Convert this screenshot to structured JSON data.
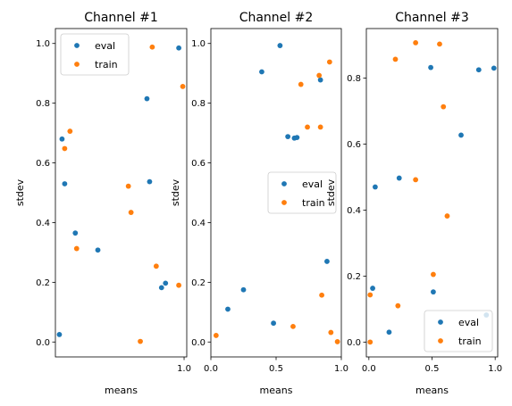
{
  "chart_data": [
    {
      "type": "scatter",
      "title": "Channel #1",
      "xlabel": "means",
      "ylabel": "stdev",
      "xlim": [
        0.03,
        1.02
      ],
      "ylim": [
        -0.05,
        1.05
      ],
      "xticks": [
        1.0
      ],
      "xtick_labels": [
        "1.0"
      ],
      "yticks": [
        0.0,
        0.2,
        0.4,
        0.6,
        0.8,
        1.0
      ],
      "ytick_labels": [
        "0.0",
        "0.2",
        "0.4",
        "0.6",
        "0.8",
        "1.0"
      ],
      "legend_position": "upper-left",
      "series": [
        {
          "name": "eval",
          "color": "#1f77b4",
          "x": [
            0.06,
            0.08,
            0.1,
            0.18,
            0.35,
            0.72,
            0.74,
            0.83,
            0.86,
            0.96
          ],
          "y": [
            0.025,
            0.68,
            0.53,
            0.365,
            0.308,
            0.815,
            0.537,
            0.182,
            0.197,
            0.985
          ]
        },
        {
          "name": "train",
          "color": "#ff7f0e",
          "x": [
            0.1,
            0.14,
            0.19,
            0.58,
            0.6,
            0.67,
            0.76,
            0.79,
            0.96,
            0.99
          ],
          "y": [
            0.648,
            0.706,
            0.313,
            0.522,
            0.434,
            0.002,
            0.988,
            0.254,
            0.19,
            0.856
          ]
        }
      ]
    },
    {
      "type": "scatter",
      "title": "Channel #2",
      "xlabel": "means",
      "ylabel": "stdev",
      "xlim": [
        0.0,
        1.0
      ],
      "ylim": [
        -0.05,
        1.05
      ],
      "xticks": [
        0.0,
        0.5,
        1.0
      ],
      "xtick_labels": [
        "0.0",
        "0.5",
        "1.0"
      ],
      "yticks": [
        0.0,
        0.2,
        0.4,
        0.6,
        0.8,
        1.0
      ],
      "ytick_labels": [
        "0.0",
        "0.2",
        "0.4",
        "0.6",
        "0.8",
        "1.0"
      ],
      "legend_position": "center-right",
      "series": [
        {
          "name": "eval",
          "color": "#1f77b4",
          "x": [
            0.13,
            0.25,
            0.39,
            0.48,
            0.53,
            0.59,
            0.64,
            0.66,
            0.84,
            0.89
          ],
          "y": [
            0.11,
            0.175,
            0.905,
            0.063,
            0.993,
            0.688,
            0.683,
            0.685,
            0.878,
            0.27
          ]
        },
        {
          "name": "train",
          "color": "#ff7f0e",
          "x": [
            0.04,
            0.63,
            0.69,
            0.74,
            0.83,
            0.84,
            0.85,
            0.91,
            0.92,
            0.97
          ],
          "y": [
            0.022,
            0.052,
            0.863,
            0.72,
            0.893,
            0.72,
            0.157,
            0.938,
            0.032,
            0.001
          ]
        }
      ]
    },
    {
      "type": "scatter",
      "title": "Channel #3",
      "xlabel": "means",
      "ylabel": "stdev",
      "xlim": [
        -0.02,
        1.02
      ],
      "ylim": [
        -0.045,
        0.95
      ],
      "xticks": [
        0.0,
        0.5,
        1.0
      ],
      "xtick_labels": [
        "0.0",
        "0.5",
        "1.0"
      ],
      "yticks": [
        0.0,
        0.2,
        0.4,
        0.6,
        0.8
      ],
      "ytick_labels": [
        "0.0",
        "0.2",
        "0.4",
        "0.6",
        "0.8"
      ],
      "legend_position": "lower-right",
      "series": [
        {
          "name": "eval",
          "color": "#1f77b4",
          "x": [
            0.03,
            0.05,
            0.16,
            0.24,
            0.49,
            0.51,
            0.73,
            0.87,
            0.93,
            0.99
          ],
          "y": [
            0.163,
            0.47,
            0.03,
            0.497,
            0.832,
            0.152,
            0.627,
            0.825,
            0.082,
            0.83
          ]
        },
        {
          "name": "train",
          "color": "#ff7f0e",
          "x": [
            0.01,
            0.01,
            0.21,
            0.23,
            0.37,
            0.37,
            0.51,
            0.56,
            0.59,
            0.62
          ],
          "y": [
            0.143,
            0.0,
            0.857,
            0.11,
            0.907,
            0.492,
            0.205,
            0.903,
            0.713,
            0.382
          ]
        }
      ]
    }
  ]
}
